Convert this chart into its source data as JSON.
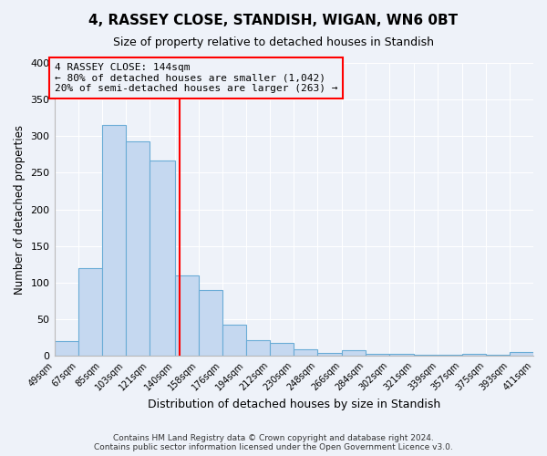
{
  "title": "4, RASSEY CLOSE, STANDISH, WIGAN, WN6 0BT",
  "subtitle": "Size of property relative to detached houses in Standish",
  "xlabel": "Distribution of detached houses by size in Standish",
  "ylabel": "Number of detached properties",
  "bar_color": "#c5d8f0",
  "bar_edge_color": "#6aacd6",
  "background_color": "#eef2f9",
  "vline_x": 144,
  "vline_color": "red",
  "annotation_title": "4 RASSEY CLOSE: 144sqm",
  "annotation_line1": "← 80% of detached houses are smaller (1,042)",
  "annotation_line2": "20% of semi-detached houses are larger (263) →",
  "bin_edges": [
    49,
    67,
    85,
    103,
    121,
    140,
    158,
    176,
    194,
    212,
    230,
    248,
    266,
    284,
    302,
    321,
    339,
    357,
    375,
    393,
    411
  ],
  "bin_labels": [
    "49sqm",
    "67sqm",
    "85sqm",
    "103sqm",
    "121sqm",
    "140sqm",
    "158sqm",
    "176sqm",
    "194sqm",
    "212sqm",
    "230sqm",
    "248sqm",
    "266sqm",
    "284sqm",
    "302sqm",
    "321sqm",
    "339sqm",
    "357sqm",
    "375sqm",
    "393sqm",
    "411sqm"
  ],
  "bar_heights": [
    20,
    120,
    315,
    293,
    267,
    110,
    90,
    43,
    22,
    18,
    9,
    4,
    8,
    3,
    3,
    2,
    2,
    3,
    2,
    5
  ],
  "ylim": [
    0,
    400
  ],
  "yticks": [
    0,
    50,
    100,
    150,
    200,
    250,
    300,
    350,
    400
  ],
  "footnote1": "Contains HM Land Registry data © Crown copyright and database right 2024.",
  "footnote2": "Contains public sector information licensed under the Open Government Licence v3.0."
}
